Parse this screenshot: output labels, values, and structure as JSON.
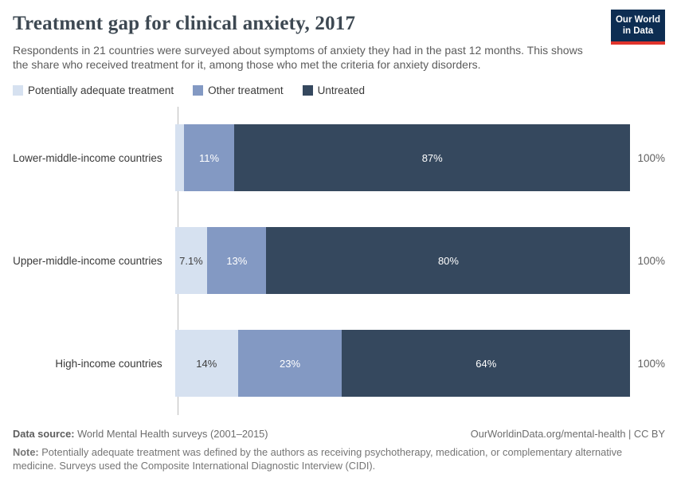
{
  "header": {
    "title": "Treatment gap for clinical anxiety, 2017",
    "subtitle": "Respondents in 21 countries were surveyed about symptoms of anxiety they had in the past 12 months. This shows the share who received treatment for it, among those who met the criteria for anxiety disorders.",
    "logo": {
      "line1": "Our World",
      "line2": "in Data",
      "bg_color": "#0d2d52",
      "strip_color": "#e0342c"
    }
  },
  "legend": [
    {
      "label": "Potentially adequate treatment",
      "color": "#d6e1f0"
    },
    {
      "label": "Other treatment",
      "color": "#8399c3"
    },
    {
      "label": "Untreated",
      "color": "#35485e"
    }
  ],
  "chart_data": {
    "type": "bar",
    "orientation": "horizontal-stacked",
    "xlim": [
      0,
      100
    ],
    "total_label": "100%",
    "categories": [
      "Lower-middle-income countries",
      "Upper-middle-income countries",
      "High-income countries"
    ],
    "series": [
      {
        "name": "Potentially adequate treatment",
        "color": "#d6e1f0",
        "text_color": "#3e3e3e",
        "values": [
          2,
          7.1,
          14
        ],
        "labels": [
          "",
          "7.1%",
          "14%"
        ]
      },
      {
        "name": "Other treatment",
        "color": "#8399c3",
        "text_color": "#ffffff",
        "values": [
          11,
          13,
          23
        ],
        "labels": [
          "11%",
          "13%",
          "23%"
        ]
      },
      {
        "name": "Untreated",
        "color": "#35485e",
        "text_color": "#ffffff",
        "values": [
          87,
          80,
          64
        ],
        "labels": [
          "87%",
          "80%",
          "64%"
        ]
      }
    ]
  },
  "footer": {
    "datasource_label": "Data source:",
    "datasource_text": " World Mental Health surveys (2001–2015)",
    "url": "OurWorldinData.org/mental-health | CC BY",
    "note_label": "Note:",
    "note_text": " Potentially adequate treatment was defined by the authors as receiving psychotherapy, medication, or complementary alternative medicine. Surveys used the Composite International Diagnostic Interview (CIDI)."
  }
}
